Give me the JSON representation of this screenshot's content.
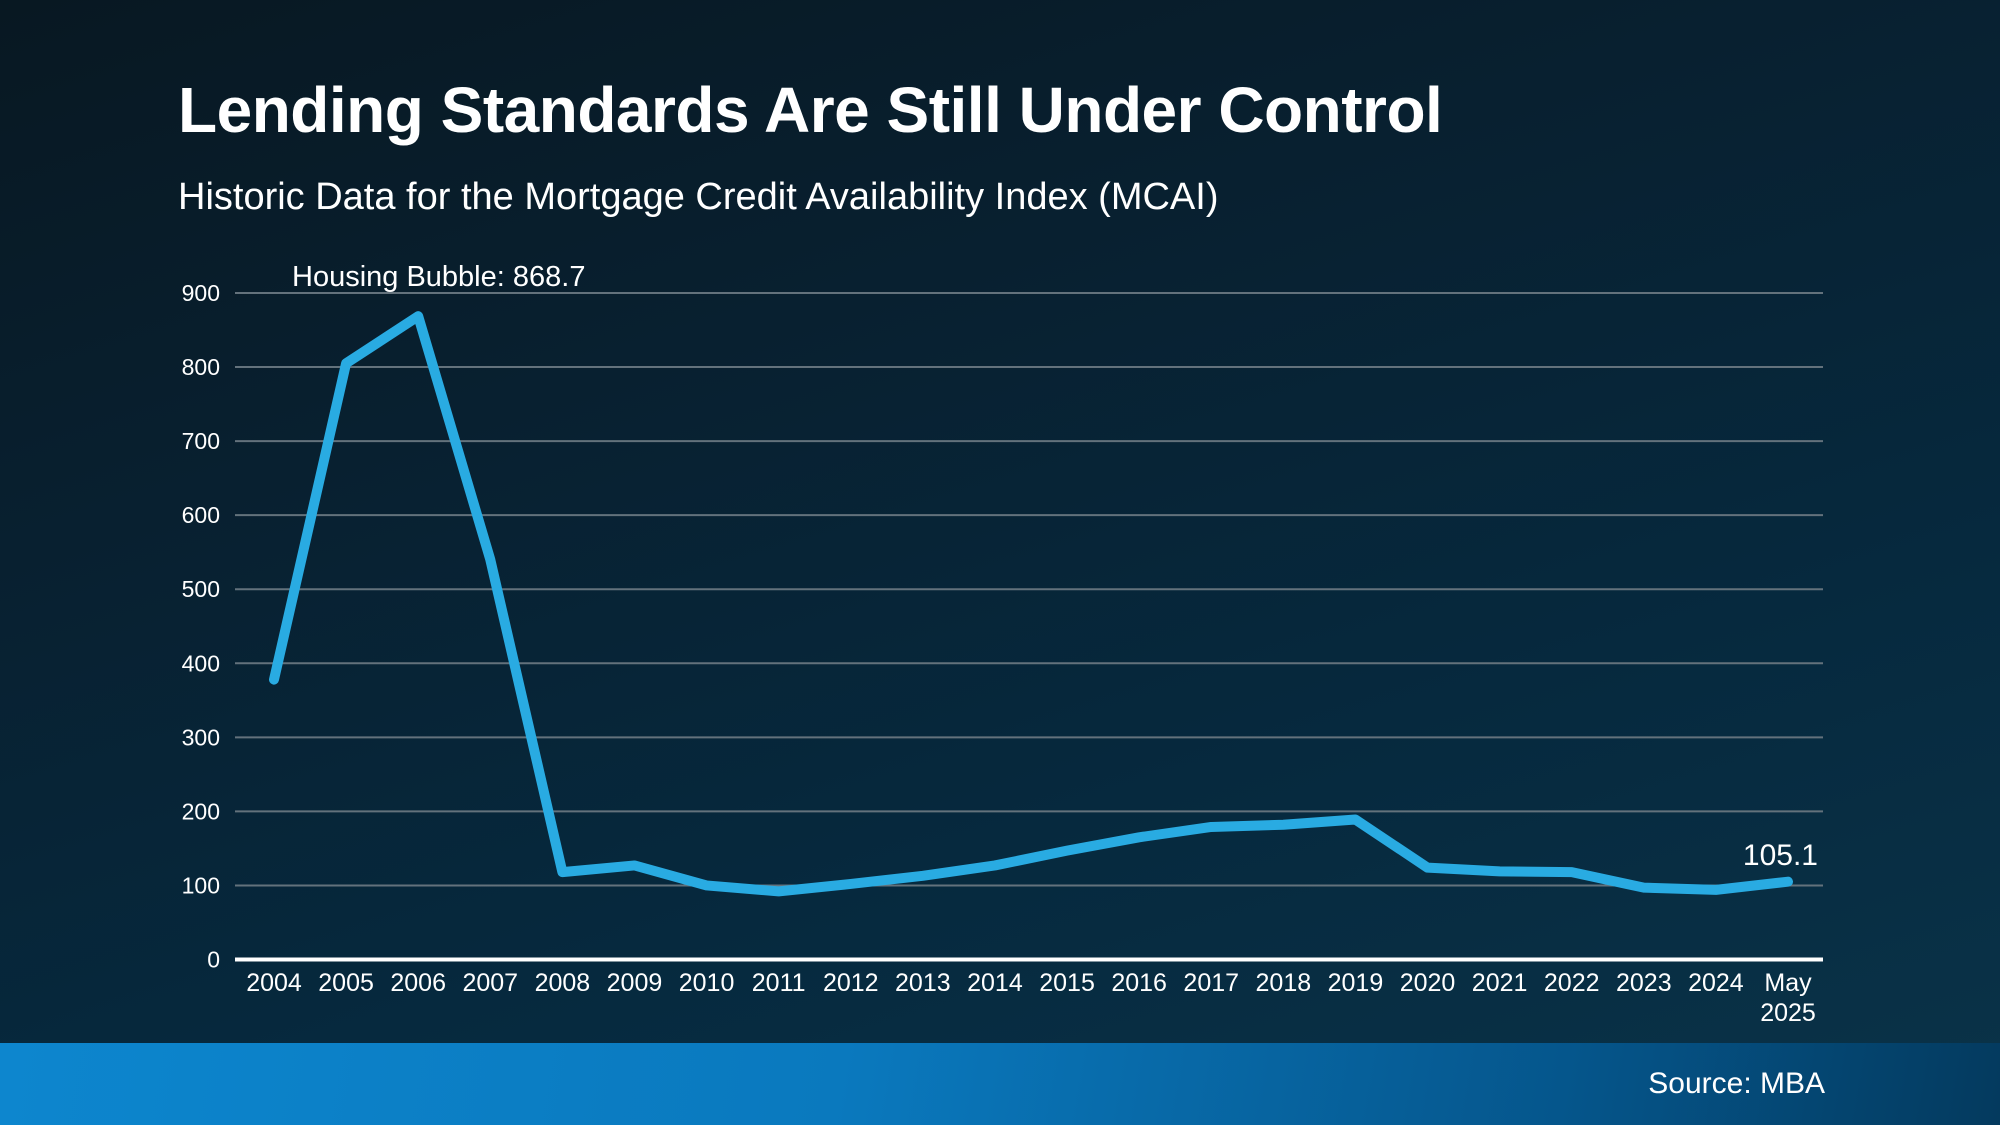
{
  "slide": {
    "title": "Lending Standards Are Still Under Control",
    "subtitle": "Historic Data for the Mortgage Credit Availability Index (MCAI)",
    "source_label": "Source: MBA"
  },
  "colors": {
    "line": "#29abe2",
    "gridline": "#63727c",
    "axis": "#ffffff",
    "text": "#ffffff",
    "background_top": "#081822",
    "background_bottom": "#0a3349",
    "footer_left": "#0d86ce",
    "footer_right": "#043a5e"
  },
  "chart_data": {
    "type": "line",
    "title": "Historic Data for the Mortgage Credit Availability Index (MCAI)",
    "series_name": "Mortgage Credit Availability Index",
    "categories": [
      "2004",
      "2005",
      "2006",
      "2007",
      "2008",
      "2009",
      "2010",
      "2011",
      "2012",
      "2013",
      "2014",
      "2015",
      "2016",
      "2017",
      "2018",
      "2019",
      "2020",
      "2021",
      "2022",
      "2023",
      "2024",
      "May 2025"
    ],
    "values": [
      378,
      805,
      868.7,
      540,
      118,
      127,
      100,
      92,
      102,
      113,
      127,
      147,
      165,
      179,
      182,
      189,
      124,
      119,
      118,
      97,
      94,
      105.1
    ],
    "xlabel": "",
    "ylabel": "",
    "ylim": [
      0,
      900
    ],
    "yticks": [
      0,
      100,
      200,
      300,
      400,
      500,
      600,
      700,
      800,
      900
    ],
    "grid": "horizontal",
    "legend": false,
    "annotations": [
      {
        "label": "Housing Bubble: 868.7",
        "category": "2006",
        "value": 868.7
      },
      {
        "label": "105.1",
        "category": "May 2025",
        "value": 105.1
      }
    ]
  }
}
